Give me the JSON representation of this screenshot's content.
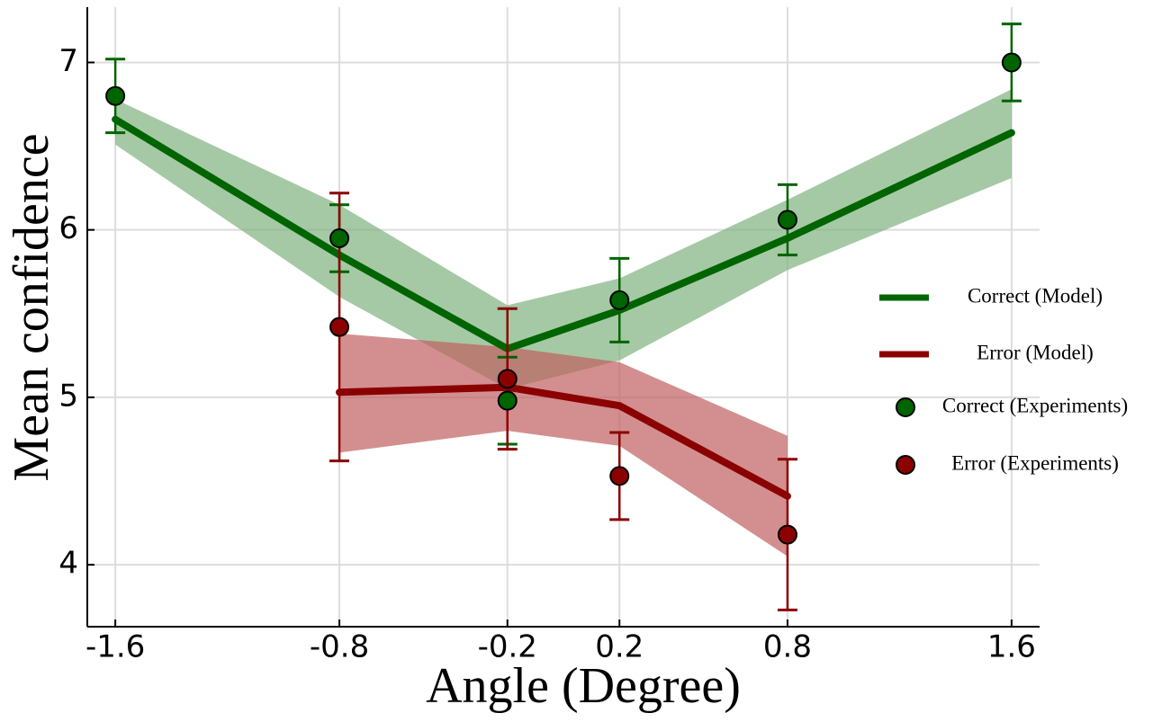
{
  "chart_data": {
    "type": "line",
    "xlabel": "Angle (Degree)",
    "ylabel": "Mean confidence",
    "xlim": [
      -1.7,
      1.7
    ],
    "ylim": [
      3.63,
      7.33
    ],
    "xticks": [
      -1.6,
      -0.8,
      -0.2,
      0.2,
      0.8,
      1.6
    ],
    "yticks": [
      4,
      5,
      6,
      7
    ],
    "grid": true,
    "legend": "right",
    "series": [
      {
        "name": "Correct (Model)",
        "kind": "line",
        "color": "#006400",
        "band_color": "#7fb27f",
        "x": [
          -1.6,
          -0.8,
          -0.2,
          0.2,
          0.8,
          1.6
        ],
        "values": [
          6.66,
          5.85,
          5.29,
          5.52,
          5.95,
          6.58
        ],
        "lower": [
          6.51,
          5.6,
          5.05,
          5.22,
          5.76,
          6.31
        ],
        "upper": [
          6.78,
          6.15,
          5.55,
          5.71,
          6.18,
          6.84
        ]
      },
      {
        "name": "Error (Model)",
        "kind": "line",
        "color": "#8b0000",
        "band_color": "#c06060",
        "x": [
          -0.8,
          -0.2,
          0.2,
          0.8
        ],
        "values": [
          5.03,
          5.06,
          4.95,
          4.41
        ],
        "lower": [
          4.67,
          4.8,
          4.71,
          4.05
        ],
        "upper": [
          5.38,
          5.3,
          5.21,
          4.77
        ]
      },
      {
        "name": "Correct (Experiments)",
        "kind": "scatter",
        "color": "#006400",
        "x": [
          -1.6,
          -0.8,
          -0.2,
          0.2,
          0.8,
          1.6
        ],
        "values": [
          6.8,
          5.95,
          4.98,
          5.58,
          6.06,
          7.0
        ],
        "errors": [
          0.22,
          0.2,
          0.26,
          0.25,
          0.21,
          0.23
        ]
      },
      {
        "name": "Error (Experiments)",
        "kind": "scatter",
        "color": "#8b0000",
        "x": [
          -0.8,
          -0.2,
          0.2,
          0.8
        ],
        "values": [
          5.42,
          5.11,
          4.53,
          4.18
        ],
        "errors": [
          0.8,
          0.42,
          0.26,
          0.45
        ]
      }
    ]
  }
}
